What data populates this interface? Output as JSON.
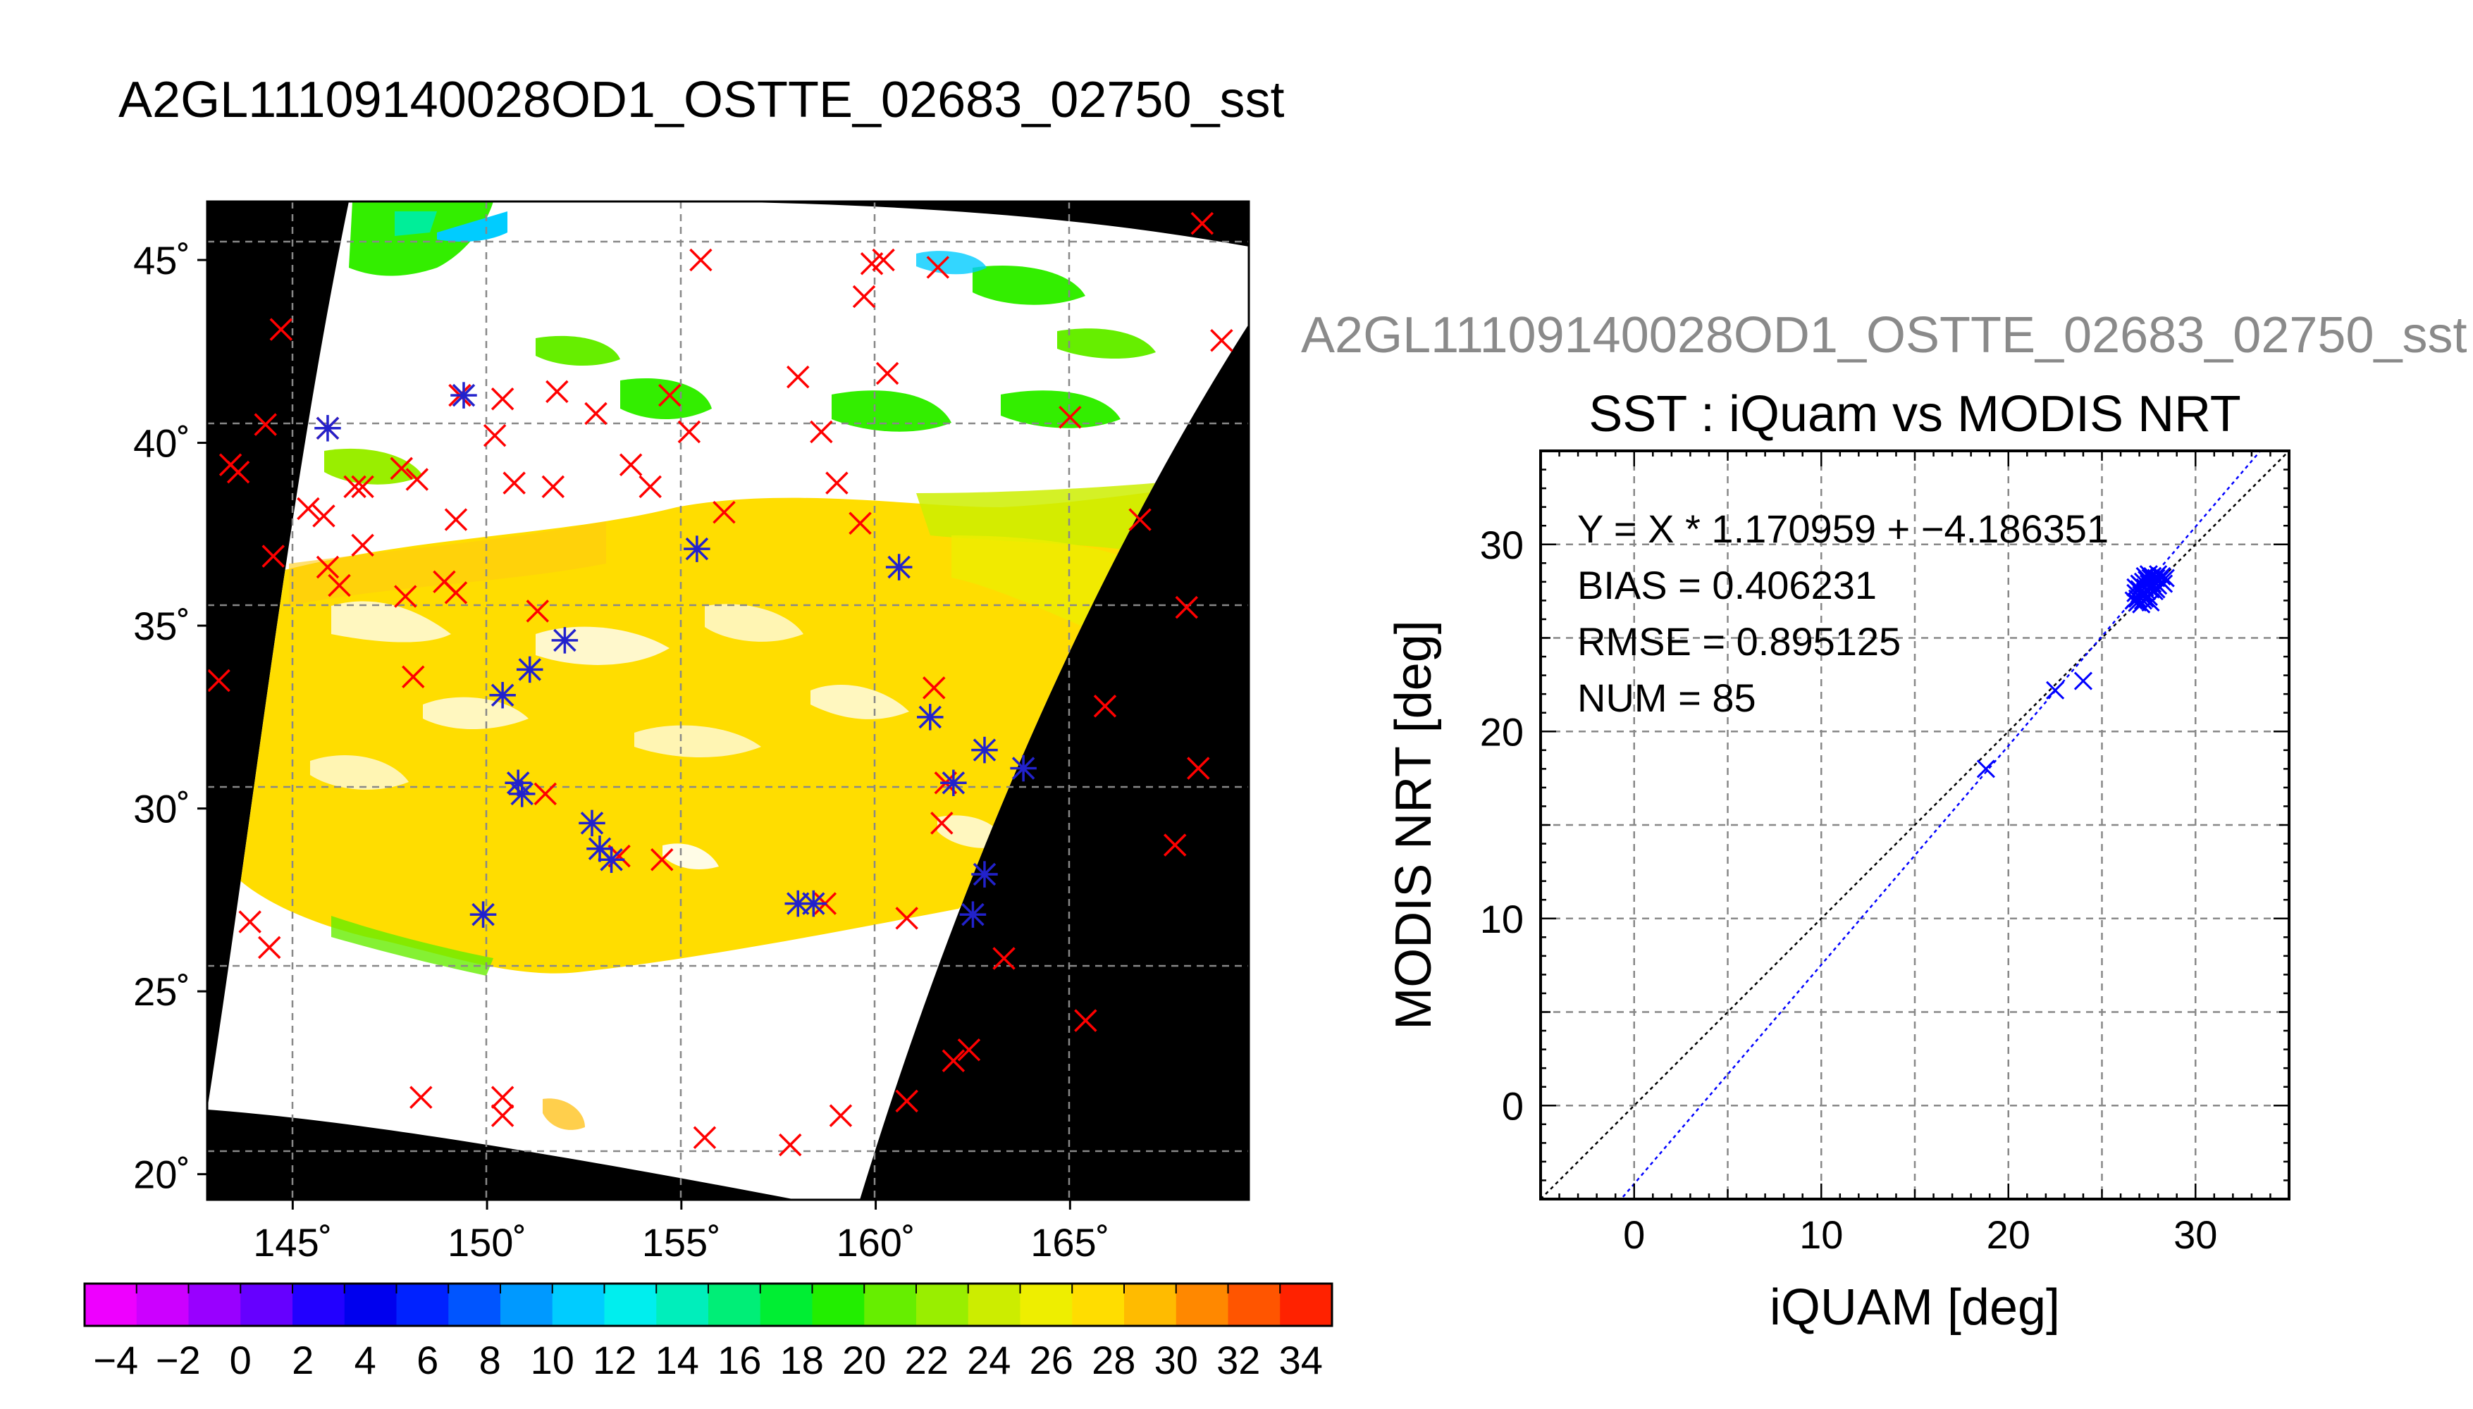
{
  "main_title": "A2GL11109140028OD1_OSTTE_02683_02750_sst",
  "scatter_subtitle": "A2GL11109140028OD1_OSTTE_02683_02750_sst",
  "colors": {
    "land_mask": "#000000",
    "cloud": "#ffffff",
    "grid": "#888888",
    "iquam_marker": "#ff0000",
    "match_marker": "#2222cc",
    "fit_line": "#0000ff",
    "identity_line": "#000000"
  },
  "colorbar": {
    "ticks": [
      "−4",
      "−2",
      "0",
      "2",
      "4",
      "6",
      "8",
      "10",
      "12",
      "14",
      "16",
      "18",
      "20",
      "22",
      "24",
      "26",
      "28",
      "30",
      "32",
      "34"
    ],
    "min": -5,
    "max": 35,
    "colors": [
      "#ee00ff",
      "#cc00ff",
      "#9900ff",
      "#6600ff",
      "#2200ff",
      "#0000ee",
      "#0022ff",
      "#0055ff",
      "#0099ff",
      "#00ccff",
      "#00eeee",
      "#00eebb",
      "#00ee77",
      "#00ee33",
      "#22ee00",
      "#66ee00",
      "#99ee00",
      "#cced00",
      "#eeee00",
      "#ffdd00",
      "#ffbb00",
      "#ff8800",
      "#ff5500",
      "#ff2200"
    ]
  },
  "chart_data": [
    {
      "type": "heatmap",
      "title": "A2GL11109140028OD1_OSTTE_02683_02750_sst",
      "xlabel": "",
      "ylabel": "",
      "xlim": [
        142.8,
        169.6
      ],
      "ylim": [
        19.3,
        46.6
      ],
      "x_ticks": [
        145,
        150,
        155,
        160,
        165
      ],
      "y_ticks": [
        20,
        25,
        30,
        35,
        40,
        45
      ],
      "x_tick_labels": [
        "145˚",
        "150˚",
        "155˚",
        "160˚",
        "165˚"
      ],
      "y_tick_labels": [
        "20˚",
        "25˚",
        "30˚",
        "35˚",
        "40˚",
        "45˚"
      ],
      "grid": true,
      "series": [
        {
          "marker": "x",
          "points": [
            [
              143.1,
              33.5
            ],
            [
              143.6,
              39.2
            ],
            [
              143.4,
              39.4
            ],
            [
              144.3,
              40.5
            ],
            [
              144.5,
              36.9
            ],
            [
              144.7,
              43.1
            ],
            [
              143.9,
              26.9
            ],
            [
              144.4,
              26.2
            ],
            [
              145.9,
              40.4
            ],
            [
              145.4,
              38.2
            ],
            [
              145.8,
              38.0
            ],
            [
              145.9,
              36.6
            ],
            [
              146.2,
              36.1
            ],
            [
              146.6,
              38.8
            ],
            [
              146.8,
              37.2
            ],
            [
              147.8,
              39.3
            ],
            [
              148.2,
              39.0
            ],
            [
              147.9,
              35.8
            ],
            [
              148.1,
              33.6
            ],
            [
              148.9,
              36.2
            ],
            [
              149.2,
              37.9
            ],
            [
              149.2,
              35.9
            ],
            [
              149.3,
              41.3
            ],
            [
              150.2,
              40.2
            ],
            [
              150.4,
              41.2
            ],
            [
              150.7,
              38.9
            ],
            [
              151.7,
              38.8
            ],
            [
              151.8,
              41.4
            ],
            [
              151.3,
              35.4
            ],
            [
              152.8,
              40.8
            ],
            [
              153.7,
              39.4
            ],
            [
              154.2,
              38.8
            ],
            [
              154.7,
              41.3
            ],
            [
              155.2,
              40.3
            ],
            [
              155.5,
              45.0
            ],
            [
              156.1,
              38.1
            ],
            [
              158.0,
              41.8
            ],
            [
              158.6,
              40.3
            ],
            [
              159.0,
              38.9
            ],
            [
              159.6,
              37.8
            ],
            [
              159.7,
              44.0
            ],
            [
              159.9,
              44.9
            ],
            [
              160.2,
              45.0
            ],
            [
              160.3,
              41.9
            ],
            [
              161.6,
              44.8
            ],
            [
              165.0,
              40.7
            ],
            [
              168.4,
              46.0
            ],
            [
              168.9,
              42.8
            ],
            [
              166.8,
              37.9
            ],
            [
              168.0,
              35.5
            ],
            [
              165.9,
              32.8
            ],
            [
              168.3,
              31.1
            ],
            [
              167.7,
              29.0
            ],
            [
              165.4,
              24.2
            ],
            [
              163.3,
              25.9
            ],
            [
              162.0,
              23.1
            ],
            [
              162.4,
              23.4
            ],
            [
              160.8,
              27.0
            ],
            [
              160.8,
              22.0
            ],
            [
              161.5,
              33.3
            ],
            [
              161.8,
              30.7
            ],
            [
              161.7,
              29.6
            ],
            [
              158.7,
              27.4
            ],
            [
              153.4,
              28.7
            ],
            [
              154.5,
              28.6
            ],
            [
              151.5,
              30.4
            ],
            [
              148.3,
              22.1
            ],
            [
              150.4,
              22.1
            ],
            [
              150.4,
              21.6
            ],
            [
              155.6,
              21.0
            ],
            [
              157.8,
              20.8
            ],
            [
              159.1,
              21.6
            ],
            [
              145.9,
              40.4
            ],
            [
              146.8,
              38.8
            ]
          ]
        },
        {
          "marker": "asterisk",
          "points": [
            [
              145.9,
              40.4
            ],
            [
              149.4,
              41.3
            ],
            [
              155.4,
              37.1
            ],
            [
              160.6,
              36.6
            ],
            [
              152.0,
              34.6
            ],
            [
              151.1,
              33.8
            ],
            [
              150.4,
              33.1
            ],
            [
              150.8,
              30.7
            ],
            [
              150.9,
              30.4
            ],
            [
              152.7,
              29.6
            ],
            [
              152.9,
              28.9
            ],
            [
              153.2,
              28.6
            ],
            [
              149.9,
              27.1
            ],
            [
              158.0,
              27.4
            ],
            [
              158.4,
              27.4
            ],
            [
              161.4,
              32.5
            ],
            [
              162.8,
              31.6
            ],
            [
              163.8,
              31.1
            ],
            [
              162.0,
              30.7
            ],
            [
              162.8,
              28.2
            ],
            [
              162.5,
              27.1
            ]
          ]
        }
      ]
    },
    {
      "type": "scatter",
      "title": "SST : iQuam vs MODIS NRT",
      "xlabel": "iQUAM [deg]",
      "ylabel": "MODIS NRT [deg]",
      "xlim": [
        -5,
        35
      ],
      "ylim": [
        -5,
        35
      ],
      "x_ticks": [
        0,
        10,
        20,
        30
      ],
      "y_ticks": [
        0,
        10,
        20,
        30
      ],
      "grid": true,
      "annotations": [
        "Y = X * 1.170959 + −4.186351",
        "BIAS = 0.406231",
        "RMSE = 0.895125",
        "NUM = 85"
      ],
      "fit": {
        "slope": 1.170959,
        "intercept": -4.186351
      },
      "series": [
        {
          "marker": "x",
          "points": [
            [
              18.8,
              18.0
            ],
            [
              22.5,
              22.2
            ],
            [
              24.0,
              22.7
            ],
            [
              26.7,
              27.0
            ],
            [
              26.8,
              27.4
            ],
            [
              26.9,
              26.9
            ],
            [
              27.0,
              27.6
            ],
            [
              27.0,
              27.2
            ],
            [
              27.1,
              27.8
            ],
            [
              27.1,
              26.8
            ],
            [
              27.2,
              28.0
            ],
            [
              27.2,
              27.4
            ],
            [
              27.3,
              27.1
            ],
            [
              27.3,
              27.7
            ],
            [
              27.4,
              28.1
            ],
            [
              27.4,
              27.5
            ],
            [
              27.5,
              27.9
            ],
            [
              27.5,
              27.2
            ],
            [
              27.6,
              28.2
            ],
            [
              27.6,
              27.6
            ],
            [
              27.7,
              27.9
            ],
            [
              27.7,
              28.3
            ],
            [
              27.8,
              28.0
            ],
            [
              27.8,
              27.5
            ],
            [
              27.9,
              28.2
            ],
            [
              28.0,
              27.8
            ],
            [
              28.0,
              28.4
            ],
            [
              28.1,
              28.1
            ],
            [
              28.2,
              28.3
            ],
            [
              28.3,
              27.9
            ],
            [
              26.9,
              27.1
            ],
            [
              27.2,
              27.0
            ],
            [
              27.5,
              28.4
            ],
            [
              27.9,
              27.6
            ],
            [
              27.0,
              27.9
            ],
            [
              27.3,
              28.3
            ],
            [
              27.6,
              26.9
            ],
            [
              28.4,
              28.2
            ],
            [
              26.8,
              27.7
            ],
            [
              27.1,
              27.3
            ]
          ]
        }
      ]
    }
  ]
}
